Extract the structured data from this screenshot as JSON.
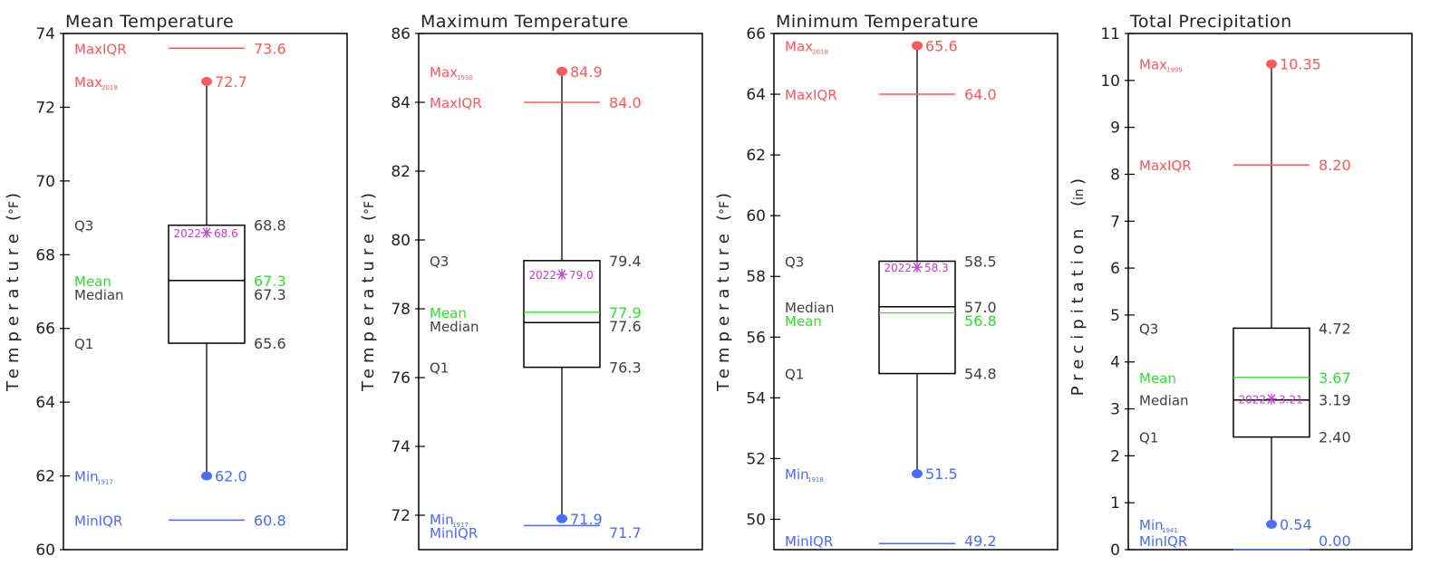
{
  "colors": {
    "max": "#ff5a5a",
    "min": "#4a6cff",
    "mean": "#33dd33",
    "current": "#c040d0",
    "text": "#404040",
    "line": "#000000"
  },
  "chart_data": [
    {
      "type": "box",
      "title": "Mean Temperature",
      "ylabel_text": "Temperature",
      "ylabel_unit": "°F",
      "ylim": [
        60,
        74
      ],
      "yticks": [
        "60",
        "62",
        "64",
        "66",
        "68",
        "70",
        "72",
        "74"
      ],
      "q1": 65.6,
      "median": 67.3,
      "q3": 68.8,
      "mean": 67.3,
      "max": 72.7,
      "max_year": "2018",
      "min": 62.0,
      "min_year": "1917",
      "maxiqr": 73.6,
      "miniqr": 60.8,
      "current_year": "2022",
      "current": 68.6,
      "labels": {
        "q1": "65.6",
        "median": "67.3",
        "q3": "68.8",
        "mean": "67.3",
        "max": "72.7",
        "min": "62.0",
        "maxiqr": "73.6",
        "miniqr": "60.8",
        "current": "68.6"
      }
    },
    {
      "type": "box",
      "title": "Maximum Temperature",
      "ylabel_text": "Temperature",
      "ylabel_unit": "°F",
      "ylim": [
        71,
        86
      ],
      "yticks": [
        "72",
        "74",
        "76",
        "78",
        "80",
        "82",
        "84",
        "86"
      ],
      "q1": 76.3,
      "median": 77.6,
      "q3": 79.4,
      "mean": 77.9,
      "max": 84.9,
      "max_year": "1930",
      "min": 71.9,
      "min_year": "1917",
      "maxiqr": 84.0,
      "miniqr": 71.7,
      "current_year": "2022",
      "current": 79.0,
      "labels": {
        "q1": "76.3",
        "median": "77.6",
        "q3": "79.4",
        "mean": "77.9",
        "max": "84.9",
        "min": "71.9",
        "maxiqr": "84.0",
        "miniqr": "71.7",
        "current": "79.0"
      }
    },
    {
      "type": "box",
      "title": "Minimum Temperature",
      "ylabel_text": "Temperature",
      "ylabel_unit": "°F",
      "ylim": [
        49,
        66
      ],
      "yticks": [
        "50",
        "52",
        "54",
        "56",
        "58",
        "60",
        "62",
        "64",
        "66"
      ],
      "q1": 54.8,
      "median": 57.0,
      "q3": 58.5,
      "mean": 56.8,
      "max": 65.6,
      "max_year": "2018",
      "min": 51.5,
      "min_year": "1918",
      "maxiqr": 64.0,
      "miniqr": 49.2,
      "current_year": "2022",
      "current": 58.3,
      "labels": {
        "q1": "54.8",
        "median": "57.0",
        "q3": "58.5",
        "mean": "56.8",
        "max": "65.6",
        "min": "51.5",
        "maxiqr": "64.0",
        "miniqr": "49.2",
        "current": "58.3"
      }
    },
    {
      "type": "box",
      "title": "Total Precipitation",
      "ylabel_text": "Precipitation",
      "ylabel_unit": "in",
      "ylim": [
        0,
        11
      ],
      "yticks": [
        "0",
        "1",
        "2",
        "3",
        "4",
        "5",
        "6",
        "7",
        "8",
        "9",
        "10",
        "11"
      ],
      "q1": 2.4,
      "median": 3.19,
      "q3": 4.72,
      "mean": 3.67,
      "max": 10.35,
      "max_year": "1999",
      "min": 0.54,
      "min_year": "1941",
      "maxiqr": 8.2,
      "miniqr": 0.0,
      "current_year": "2022",
      "current": 3.21,
      "labels": {
        "q1": "2.40",
        "median": "3.19",
        "q3": "4.72",
        "mean": "3.67",
        "max": "10.35",
        "min": "0.54",
        "maxiqr": "8.20",
        "miniqr": "0.00",
        "current": "3.21"
      }
    }
  ],
  "static_labels": {
    "max": "Max",
    "min": "Min",
    "maxiqr": "MaxIQR",
    "miniqr": "MinIQR",
    "mean": "Mean",
    "median": "Median",
    "q1": "Q1",
    "q3": "Q3"
  }
}
